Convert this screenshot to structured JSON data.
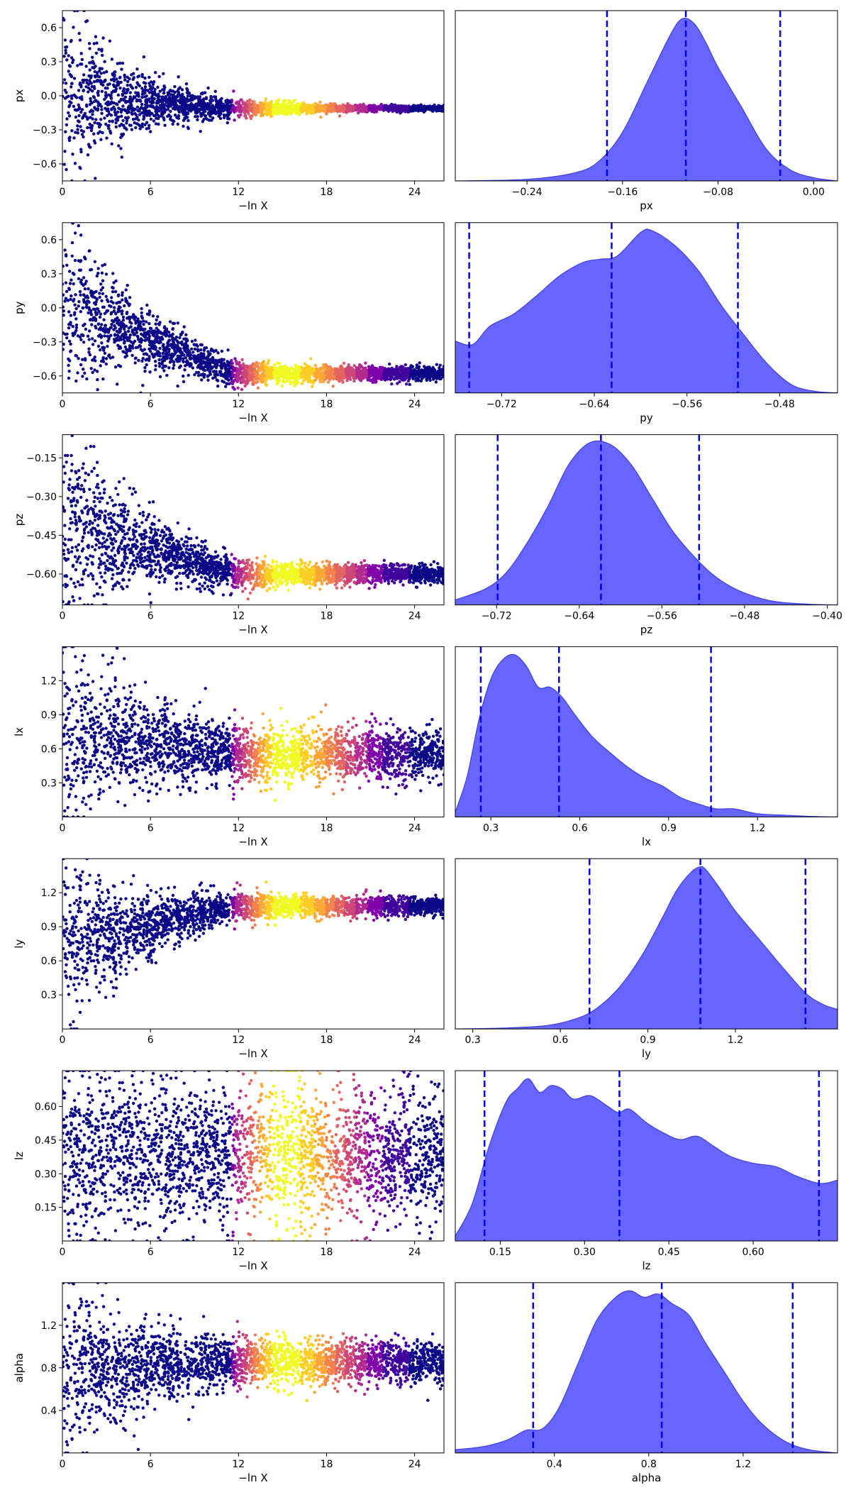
{
  "chart_data": {
    "type": "trace-plot",
    "colors": {
      "posterior_fill": "#6666ff",
      "posterior_edge": "#3f3fe0",
      "quantile_line": "#0000ee",
      "weight_colormap": [
        "#0d0887",
        "#41049d",
        "#7e03a8",
        "#b12a90",
        "#cc4778",
        "#e16462",
        "#f2844b",
        "#fca636",
        "#fcce25",
        "#f0f921"
      ]
    },
    "trace_x_label": "−ln X",
    "trace_x_ticks": [
      "0",
      "6",
      "12",
      "18",
      "24"
    ],
    "trace_x_range": [
      0,
      26
    ],
    "panels": [
      {
        "param": "px",
        "trace": {
          "y_range": [
            -0.75,
            0.75
          ],
          "y_ticks": [
            "0.6",
            "0.3",
            "0.0",
            "−0.3",
            "−0.6"
          ],
          "y_tick_values": [
            0.6,
            0.3,
            0.0,
            -0.3,
            -0.6
          ],
          "center_start": 0.0,
          "center_end": -0.11,
          "spread_start": 0.72,
          "spread_end": 0.02,
          "peak_at": 15
        },
        "posterior": {
          "x_range": [
            -0.3,
            0.02
          ],
          "x_ticks": [
            "−0.24",
            "−0.16",
            "−0.08",
            "0.00"
          ],
          "x_tick_values": [
            -0.24,
            -0.16,
            -0.08,
            0.0
          ],
          "density_x": [
            -0.3,
            -0.24,
            -0.2,
            -0.18,
            -0.16,
            -0.14,
            -0.12,
            -0.11,
            -0.1,
            -0.09,
            -0.08,
            -0.06,
            -0.04,
            -0.02,
            0.0,
            0.02
          ],
          "density_y": [
            0.0,
            0.01,
            0.05,
            0.12,
            0.3,
            0.6,
            0.9,
            1.0,
            0.97,
            0.85,
            0.7,
            0.45,
            0.2,
            0.07,
            0.02,
            0.0
          ],
          "quantiles": [
            -0.173,
            -0.107,
            -0.028
          ]
        }
      },
      {
        "param": "py",
        "trace": {
          "y_range": [
            -0.75,
            0.75
          ],
          "y_ticks": [
            "0.6",
            "0.3",
            "0.0",
            "−0.3",
            "−0.6"
          ],
          "y_tick_values": [
            0.6,
            0.3,
            0.0,
            -0.3,
            -0.6
          ],
          "center_start": 0.0,
          "center_end": -0.58,
          "spread_start": 0.75,
          "spread_end": 0.05,
          "peak_at": 15
        },
        "posterior": {
          "x_range": [
            -0.76,
            -0.43
          ],
          "x_ticks": [
            "−0.72",
            "−0.64",
            "−0.56",
            "−0.48"
          ],
          "x_tick_values": [
            -0.72,
            -0.64,
            -0.56,
            -0.48
          ],
          "density_x": [
            -0.76,
            -0.745,
            -0.73,
            -0.71,
            -0.69,
            -0.67,
            -0.65,
            -0.635,
            -0.62,
            -0.6,
            -0.59,
            -0.57,
            -0.55,
            -0.53,
            -0.51,
            -0.49,
            -0.47,
            -0.45,
            -0.43
          ],
          "density_y": [
            0.31,
            0.29,
            0.4,
            0.47,
            0.58,
            0.7,
            0.78,
            0.8,
            0.82,
            0.96,
            0.97,
            0.88,
            0.73,
            0.52,
            0.34,
            0.17,
            0.05,
            0.01,
            0.0
          ],
          "quantiles": [
            -0.748,
            -0.625,
            -0.516
          ]
        }
      },
      {
        "param": "pz",
        "trace": {
          "y_range": [
            -0.72,
            -0.06
          ],
          "y_ticks": [
            "−0.15",
            "−0.30",
            "−0.45",
            "−0.60"
          ],
          "y_tick_values": [
            -0.15,
            -0.3,
            -0.45,
            -0.6
          ],
          "center_start": -0.4,
          "center_end": -0.6,
          "spread_start": 0.36,
          "spread_end": 0.03,
          "peak_at": 15
        },
        "posterior": {
          "x_range": [
            -0.76,
            -0.39
          ],
          "x_ticks": [
            "−0.72",
            "−0.64",
            "−0.56",
            "−0.48",
            "−0.40"
          ],
          "x_tick_values": [
            -0.72,
            -0.64,
            -0.56,
            -0.48,
            -0.4
          ],
          "density_x": [
            -0.76,
            -0.73,
            -0.71,
            -0.69,
            -0.67,
            -0.65,
            -0.63,
            -0.61,
            -0.59,
            -0.57,
            -0.55,
            -0.53,
            -0.51,
            -0.49,
            -0.47,
            -0.45,
            -0.42,
            -0.39
          ],
          "density_y": [
            0.03,
            0.1,
            0.2,
            0.38,
            0.6,
            0.85,
            0.98,
            0.97,
            0.85,
            0.65,
            0.45,
            0.3,
            0.18,
            0.1,
            0.05,
            0.02,
            0.005,
            0.0
          ],
          "quantiles": [
            -0.719,
            -0.619,
            -0.524
          ]
        }
      },
      {
        "param": "lx",
        "trace": {
          "y_range": [
            0.0,
            1.5
          ],
          "y_ticks": [
            "1.2",
            "0.9",
            "0.6",
            "0.3"
          ],
          "y_tick_values": [
            1.2,
            0.9,
            0.6,
            0.3
          ],
          "center_start": 0.75,
          "center_end": 0.55,
          "spread_start": 0.75,
          "spread_end": 0.2,
          "peak_at": 15
        },
        "posterior": {
          "x_range": [
            0.18,
            1.47
          ],
          "x_ticks": [
            "0.3",
            "0.6",
            "0.9",
            "1.2"
          ],
          "x_tick_values": [
            0.3,
            0.6,
            0.9,
            1.2
          ],
          "density_x": [
            0.18,
            0.22,
            0.26,
            0.3,
            0.34,
            0.38,
            0.42,
            0.46,
            0.5,
            0.54,
            0.58,
            0.64,
            0.7,
            0.76,
            0.82,
            0.88,
            0.94,
            1.0,
            1.06,
            1.12,
            1.2,
            1.3,
            1.4,
            1.47
          ],
          "density_y": [
            0.03,
            0.25,
            0.6,
            0.85,
            0.97,
            1.0,
            0.93,
            0.8,
            0.8,
            0.74,
            0.64,
            0.5,
            0.4,
            0.31,
            0.24,
            0.19,
            0.12,
            0.08,
            0.05,
            0.05,
            0.02,
            0.01,
            0.002,
            0.0
          ],
          "quantiles": [
            0.266,
            0.53,
            1.043
          ]
        }
      },
      {
        "param": "ly",
        "trace": {
          "y_range": [
            0.0,
            1.5
          ],
          "y_ticks": [
            "1.2",
            "0.9",
            "0.6",
            "0.3"
          ],
          "y_tick_values": [
            1.2,
            0.9,
            0.6,
            0.3
          ],
          "center_start": 0.75,
          "center_end": 1.08,
          "spread_start": 0.75,
          "spread_end": 0.07,
          "peak_at": 15
        },
        "posterior": {
          "x_range": [
            0.24,
            1.55
          ],
          "x_ticks": [
            "0.3",
            "0.6",
            "0.9",
            "1.2"
          ],
          "x_tick_values": [
            0.3,
            0.6,
            0.9,
            1.2
          ],
          "density_x": [
            0.24,
            0.4,
            0.55,
            0.65,
            0.72,
            0.8,
            0.88,
            0.95,
            1.0,
            1.05,
            1.08,
            1.1,
            1.15,
            1.2,
            1.28,
            1.36,
            1.44,
            1.5,
            1.55
          ],
          "density_y": [
            0.0,
            0.005,
            0.02,
            0.06,
            0.12,
            0.25,
            0.45,
            0.68,
            0.85,
            0.96,
            0.99,
            0.97,
            0.85,
            0.72,
            0.55,
            0.38,
            0.22,
            0.15,
            0.12
          ],
          "quantiles": [
            0.7,
            1.08,
            1.44
          ]
        }
      },
      {
        "param": "lz",
        "trace": {
          "y_range": [
            0.0,
            0.76
          ],
          "y_ticks": [
            "0.60",
            "0.45",
            "0.30",
            "0.15"
          ],
          "y_tick_values": [
            0.6,
            0.45,
            0.3,
            0.15
          ],
          "center_start": 0.38,
          "center_end": 0.38,
          "spread_start": 0.38,
          "spread_end": 0.28,
          "peak_at": 15
        },
        "posterior": {
          "x_range": [
            0.07,
            0.75
          ],
          "x_ticks": [
            "0.15",
            "0.30",
            "0.45",
            "0.60"
          ],
          "x_tick_values": [
            0.15,
            0.3,
            0.45,
            0.6
          ],
          "density_x": [
            0.07,
            0.1,
            0.13,
            0.16,
            0.18,
            0.2,
            0.22,
            0.24,
            0.26,
            0.28,
            0.31,
            0.34,
            0.36,
            0.38,
            0.41,
            0.44,
            0.47,
            0.5,
            0.53,
            0.56,
            0.6,
            0.64,
            0.68,
            0.72,
            0.75
          ],
          "density_y": [
            0.03,
            0.22,
            0.56,
            0.82,
            0.9,
            0.96,
            0.88,
            0.92,
            0.9,
            0.84,
            0.86,
            0.8,
            0.76,
            0.78,
            0.7,
            0.64,
            0.6,
            0.62,
            0.56,
            0.5,
            0.46,
            0.44,
            0.38,
            0.34,
            0.36
          ],
          "quantiles": [
            0.122,
            0.362,
            0.717
          ]
        }
      },
      {
        "param": "alpha",
        "trace": {
          "y_range": [
            0.0,
            1.6
          ],
          "y_ticks": [
            "1.2",
            "0.8",
            "0.4"
          ],
          "y_tick_values": [
            1.2,
            0.8,
            0.4
          ],
          "center_start": 0.8,
          "center_end": 0.86,
          "spread_start": 0.8,
          "spread_end": 0.18,
          "peak_at": 15
        },
        "posterior": {
          "x_range": [
            -0.02,
            1.6
          ],
          "x_ticks": [
            "0.4",
            "0.8",
            "1.2"
          ],
          "x_tick_values": [
            0.4,
            0.8,
            1.2
          ],
          "density_x": [
            -0.02,
            0.1,
            0.2,
            0.28,
            0.35,
            0.42,
            0.5,
            0.58,
            0.66,
            0.72,
            0.78,
            0.84,
            0.9,
            0.97,
            1.04,
            1.12,
            1.2,
            1.28,
            1.38,
            1.48,
            1.6
          ],
          "density_y": [
            0.02,
            0.04,
            0.08,
            0.14,
            0.15,
            0.28,
            0.55,
            0.82,
            0.96,
            1.0,
            0.96,
            0.98,
            0.92,
            0.85,
            0.68,
            0.5,
            0.32,
            0.18,
            0.07,
            0.02,
            0.0
          ],
          "quantiles": [
            0.31,
            0.855,
            1.41
          ]
        }
      }
    ]
  }
}
